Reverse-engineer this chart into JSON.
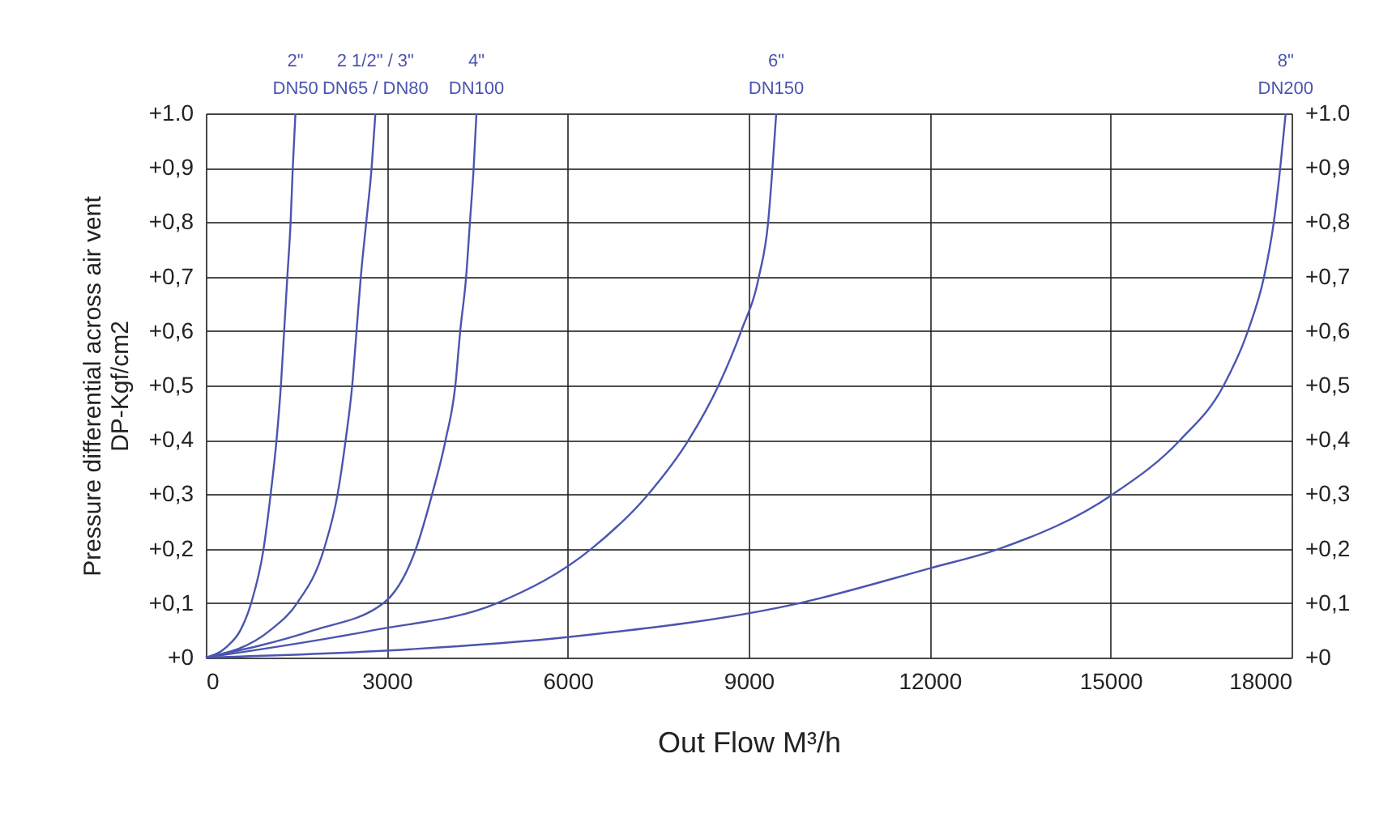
{
  "chart_data": {
    "type": "line",
    "xlabel": "Out Flow M³/h",
    "ylabel": "Pressure differential across air vent\nDP-Kgf/cm2",
    "xlim": [
      0,
      18000
    ],
    "xticks": [
      0,
      3000,
      6000,
      9000,
      12000,
      15000,
      18000
    ],
    "ylim": [
      0,
      1.0
    ],
    "yticks": [
      {
        "value": 0,
        "label": "+0"
      },
      {
        "value": 0.1,
        "label": "+0,1"
      },
      {
        "value": 0.2,
        "label": "+0,2"
      },
      {
        "value": 0.3,
        "label": "+0,3"
      },
      {
        "value": 0.4,
        "label": "+0,4"
      },
      {
        "value": 0.5,
        "label": "+0,5"
      },
      {
        "value": 0.6,
        "label": "+0,6"
      },
      {
        "value": 0.7,
        "label": "+0,7"
      },
      {
        "value": 0.8,
        "label": "+0,8"
      },
      {
        "value": 0.9,
        "label": "+0,9"
      },
      {
        "value": 1.0,
        "label": "+1.0"
      }
    ],
    "y2lim": [
      0,
      1.0
    ],
    "y2ticks": [
      {
        "value": 0,
        "label": "+0"
      },
      {
        "value": 0.1,
        "label": "+0,1"
      },
      {
        "value": 0.2,
        "label": "+0,2"
      },
      {
        "value": 0.3,
        "label": "+0,3"
      },
      {
        "value": 0.4,
        "label": "+0,4"
      },
      {
        "value": 0.5,
        "label": "+0,5"
      },
      {
        "value": 0.6,
        "label": "+0,6"
      },
      {
        "value": 0.7,
        "label": "+0,7"
      },
      {
        "value": 0.8,
        "label": "+0,8"
      },
      {
        "value": 0.9,
        "label": "+0,9"
      },
      {
        "value": 1.0,
        "label": "+1.0"
      }
    ],
    "grid": true,
    "legend": false,
    "marker": "none",
    "line_style": "solid",
    "series": [
      {
        "name": "2\"\nDN50",
        "color": "#4a55b0",
        "x": [
          0,
          349,
          573,
          752,
          958,
          1075,
          1173,
          1245,
          1299,
          1352,
          1406,
          1442,
          1486
        ],
        "values": [
          0,
          0.02,
          0.05,
          0.1,
          0.2,
          0.3,
          0.4,
          0.5,
          0.6,
          0.7,
          0.8,
          0.9,
          1.0
        ]
      },
      {
        "name": "2 1/2\" / 3\"\nDN65 / DN80",
        "color": "#4a55b0",
        "x": [
          0,
          1066,
          1513,
          1961,
          2185,
          2319,
          2427,
          2499,
          2570,
          2660,
          2749,
          2812
        ],
        "values": [
          0,
          0.05,
          0.1,
          0.2,
          0.3,
          0.4,
          0.5,
          0.6,
          0.7,
          0.8,
          0.9,
          1.0
        ]
      },
      {
        "name": "4\"\nDN100",
        "color": "#4a55b0",
        "x": [
          0,
          1782,
          2946,
          3484,
          3752,
          3976,
          4137,
          4218,
          4316,
          4379,
          4441,
          4487
        ],
        "values": [
          0,
          0.05,
          0.1,
          0.2,
          0.3,
          0.4,
          0.5,
          0.6,
          0.7,
          0.8,
          0.9,
          1.0
        ]
      },
      {
        "name": "6\"\nDN150",
        "color": "#4a55b0",
        "x": [
          0,
          2767,
          4827,
          6394,
          7335,
          8006,
          8500,
          8876,
          9170,
          9323,
          9395,
          9457
        ],
        "values": [
          0,
          0.05,
          0.1,
          0.2,
          0.3,
          0.4,
          0.5,
          0.6,
          0.7,
          0.8,
          0.9,
          1.0
        ]
      },
      {
        "name": "8\"\nDN200",
        "color": "#4a55b0",
        "x": [
          0,
          3036,
          6027,
          9842,
          12000,
          13158,
          15036,
          16155,
          16875,
          17276,
          17545,
          17706,
          17813,
          17903
        ],
        "values": [
          0,
          0.013,
          0.038,
          0.1,
          0.164,
          0.2,
          0.3,
          0.4,
          0.5,
          0.6,
          0.7,
          0.8,
          0.9,
          1.0
        ]
      }
    ]
  }
}
